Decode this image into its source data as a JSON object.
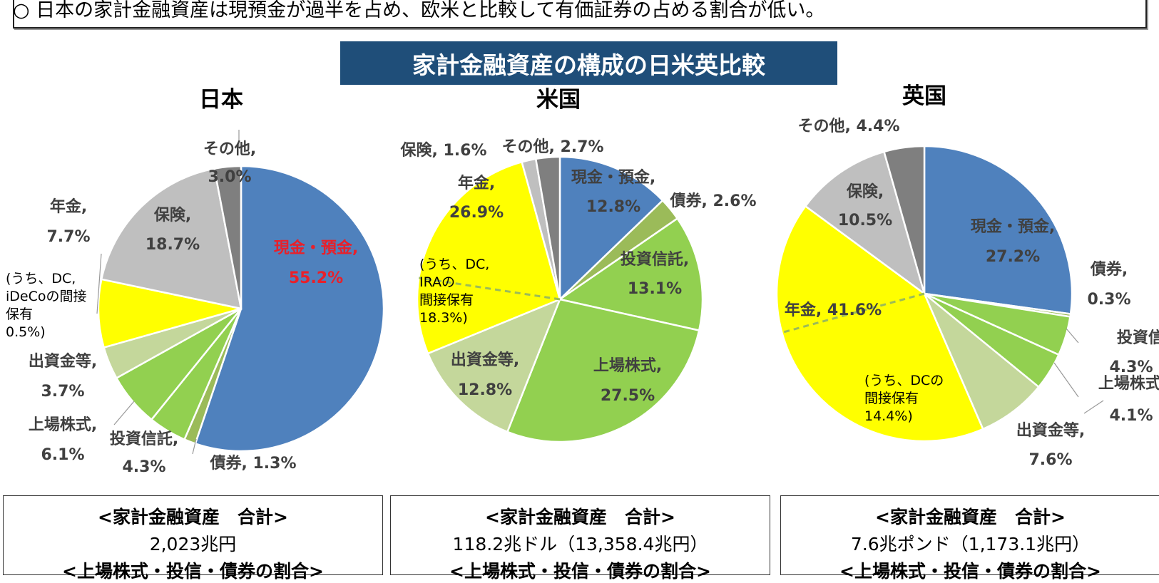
{
  "header": {
    "summary": "○ 日本の家計金融資産は現預金が過半を占め、欧米と比較して有価証券の占める割合が低い。",
    "banner": "家計金融資産の構成の日米英比較"
  },
  "colors": {
    "cash": "#4f81bd",
    "bonds": "#9bbb59",
    "trusts": "#92d050",
    "stocks": "#92d050",
    "investment": "#c4d79b",
    "pension": "#ffff00",
    "insurance": "#bfbfbf",
    "other": "#7f7f7f",
    "highlight": "#e8202a",
    "banner": "#1f4e79"
  },
  "chart_data": [
    {
      "type": "pie",
      "title": "日本",
      "slices": [
        {
          "name": "現金・預金",
          "value": 55.2
        },
        {
          "name": "債券",
          "value": 1.3
        },
        {
          "name": "投資信託",
          "value": 4.3
        },
        {
          "name": "上場株式",
          "value": 6.1
        },
        {
          "name": "出資金等",
          "value": 3.7
        },
        {
          "name": "年金",
          "value": 7.7
        },
        {
          "name": "保険",
          "value": 18.7
        },
        {
          "name": "その他",
          "value": 3.0
        }
      ],
      "labels": [
        "現金・預金,",
        "55.2%",
        "債券, 1.3%",
        "投資信託,",
        "4.3%",
        "上場株式,",
        "6.1%",
        "出資金等,",
        "3.7%",
        "年金,",
        "7.7%",
        "保険,",
        "18.7%",
        "その他,",
        "3.0%"
      ],
      "note_lines": [
        "(うち、DC,",
        "iDeCoの間接",
        "保有",
        "0.5%)"
      ]
    },
    {
      "type": "pie",
      "title": "米国",
      "slices": [
        {
          "name": "現金・預金",
          "value": 12.8
        },
        {
          "name": "債券",
          "value": 2.6
        },
        {
          "name": "投資信託",
          "value": 13.1
        },
        {
          "name": "上場株式",
          "value": 27.5
        },
        {
          "name": "出資金等",
          "value": 12.8
        },
        {
          "name": "年金",
          "value": 26.9
        },
        {
          "name": "保険",
          "value": 1.6
        },
        {
          "name": "その他",
          "value": 2.7
        }
      ],
      "labels": [
        "現金・預金,",
        "12.8%",
        "債券, 2.6%",
        "投資信託,",
        "13.1%",
        "上場株式,",
        "27.5%",
        "出資金等,",
        "12.8%",
        "年金,",
        "26.9%",
        "保険, 1.6%",
        "その他, 2.7%"
      ],
      "note_lines": [
        "(うち、DC,",
        "IRAの",
        "間接保有",
        "18.3%)"
      ]
    },
    {
      "type": "pie",
      "title": "英国",
      "slices": [
        {
          "name": "現金・預金",
          "value": 27.2
        },
        {
          "name": "債券",
          "value": 0.3
        },
        {
          "name": "投資信託",
          "value": 4.3
        },
        {
          "name": "上場株式",
          "value": 4.1
        },
        {
          "name": "出資金等",
          "value": 7.6
        },
        {
          "name": "年金",
          "value": 41.6
        },
        {
          "name": "保険",
          "value": 10.5
        },
        {
          "name": "その他",
          "value": 4.4
        }
      ],
      "labels": [
        "現金・預金,",
        "27.2%",
        "債券,",
        "0.3%",
        "投資信託,",
        "4.3%",
        "上場株式,",
        "4.1%",
        "出資金等,",
        "7.6%",
        "年金, 41.6%",
        "保険,",
        "10.5%",
        "その他, 4.4%"
      ],
      "note_lines": [
        "(うち、DCの",
        "間接保有",
        "14.4%)"
      ]
    }
  ],
  "summaries": [
    {
      "head": "<家計金融資産　合計>",
      "total": "2,023兆円",
      "sub": "<上場株式・投信・債券の割合>"
    },
    {
      "head": "<家計金融資産　合計>",
      "total": "118.2兆ドル（13,358.4兆円）",
      "sub": "<上場株式・投信・債券の割合>"
    },
    {
      "head": "<家計金融資産　合計>",
      "total": "7.6兆ポンド（1,173.1兆円）",
      "sub": "<上場株式・投信・債券の割合>"
    }
  ]
}
